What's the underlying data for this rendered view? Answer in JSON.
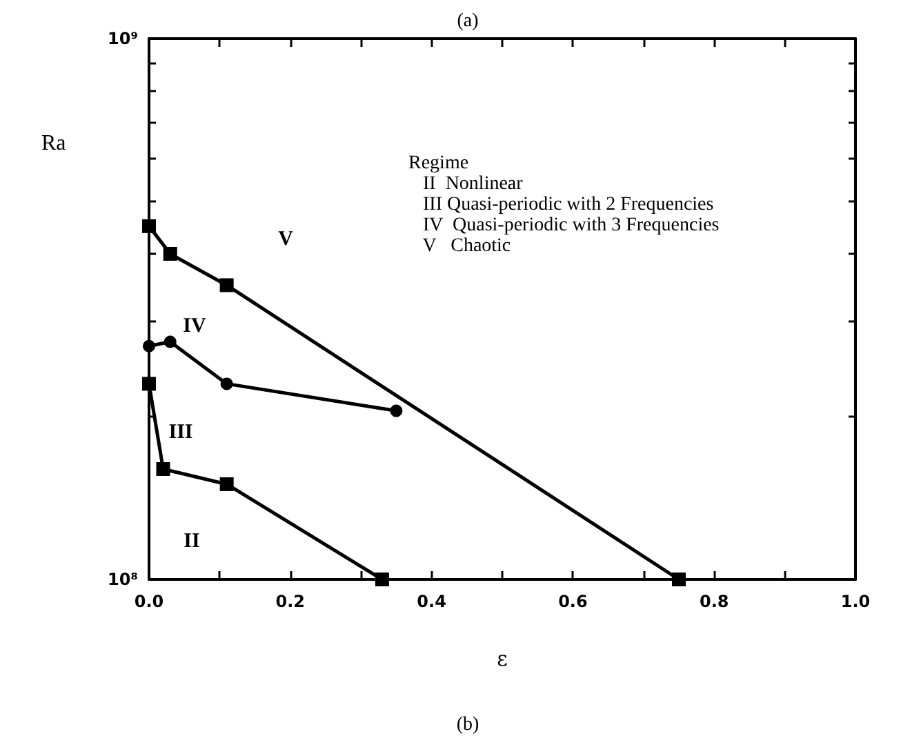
{
  "chart_data": {
    "type": "line",
    "xlabel": "ε",
    "ylabel": "Ra",
    "log": "y",
    "xlim": [
      0,
      1
    ],
    "ylim": [
      100000000,
      1000000000
    ],
    "xticks": [
      {
        "value": 0,
        "label": "0.0"
      },
      {
        "value": 0.1,
        "label": null
      },
      {
        "value": 0.2,
        "label": "0.2"
      },
      {
        "value": 0.3,
        "label": null
      },
      {
        "value": 0.4,
        "label": "0.4"
      },
      {
        "value": 0.5,
        "label": null
      },
      {
        "value": 0.6,
        "label": "0.6"
      },
      {
        "value": 0.7,
        "label": null
      },
      {
        "value": 0.8,
        "label": "0.8"
      },
      {
        "value": 0.9,
        "label": null
      },
      {
        "value": 1,
        "label": "1.0"
      }
    ],
    "yticks": [
      {
        "value": 100000000,
        "label": "10⁸"
      },
      {
        "value": 200000000,
        "label": null
      },
      {
        "value": 300000000,
        "label": null
      },
      {
        "value": 400000000,
        "label": null
      },
      {
        "value": 500000000,
        "label": null
      },
      {
        "value": 600000000,
        "label": null
      },
      {
        "value": 700000000,
        "label": null
      },
      {
        "value": 800000000,
        "label": null
      },
      {
        "value": 900000000,
        "label": null
      },
      {
        "value": 1000000000,
        "label": "10⁹"
      }
    ],
    "grid": false,
    "line_style": "solid",
    "series": [
      {
        "color": "#000000",
        "marker": "square",
        "x": [
          0,
          0.03,
          0.11,
          0.75
        ],
        "values": [
          450000000,
          400000000,
          350000000,
          100000000
        ]
      },
      {
        "color": "#000000",
        "marker": "circle",
        "x": [
          0,
          0.03,
          0.11,
          0.35
        ],
        "values": [
          270000000,
          275000000,
          230000000,
          205000000
        ]
      },
      {
        "color": "#000000",
        "marker": "square",
        "x": [
          0,
          0.02,
          0.11,
          0.33
        ],
        "values": [
          230000000,
          160000000,
          150000000,
          100000000
        ]
      }
    ],
    "annotations": [
      "(a)",
      "Regime\n   II  Nonlinear\n   III Quasi-periodic with 2 Frequencies\n   IV  Quasi-periodic with 3 Frequencies\n   V   Chaotic",
      "(b)",
      "V",
      "IV",
      "III",
      "II"
    ]
  }
}
